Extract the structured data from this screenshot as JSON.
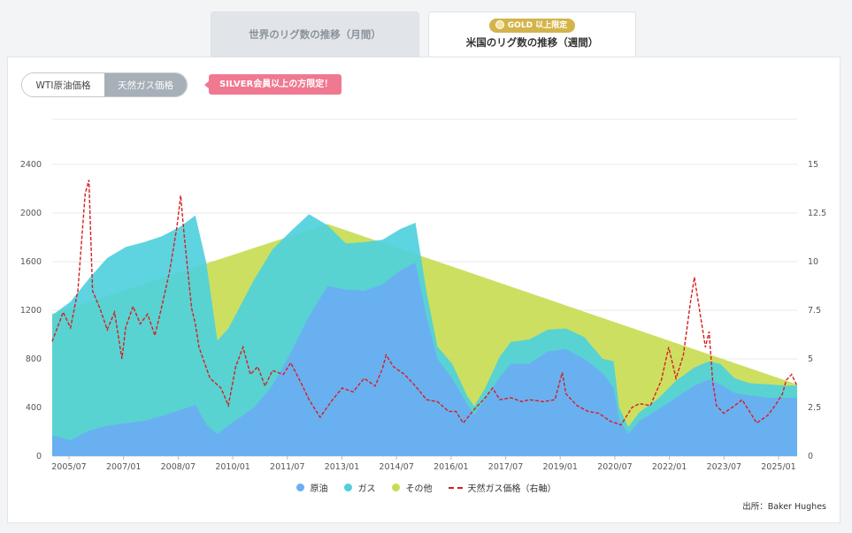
{
  "tabs": [
    {
      "label": "世界のリグ数の推移（月間）"
    },
    {
      "badge": "GOLD 以上限定",
      "label": "米国のリグ数の推移（週間）"
    }
  ],
  "toggle": {
    "wti": "WTI原油価格",
    "gas": "天然ガス価格"
  },
  "silver_notice": "SILVER会員以上の方限定！",
  "source": "出所：Baker Hughes",
  "colors": {
    "oil": "#6aaef2",
    "gas": "#4fd0dc",
    "other": "#c8dc50",
    "price": "#d81e1e",
    "selected_toggle": "#a7afb8",
    "silver": "#f07890",
    "gold": "#d4b44a"
  },
  "chart_data": {
    "type": "area",
    "x_ticks": [
      "2005/07",
      "2007/01",
      "2008/07",
      "2010/01",
      "2011/07",
      "2013/01",
      "2014/07",
      "2016/01",
      "2017/07",
      "2019/01",
      "2020/07",
      "2022/01",
      "2023/07",
      "2025/01"
    ],
    "left_axis": {
      "ticks": [
        0,
        400,
        800,
        1200,
        1600,
        2000,
        2400
      ],
      "range": [
        0,
        2400
      ]
    },
    "right_axis": {
      "ticks": [
        0,
        2.5,
        5,
        7.5,
        10,
        12.5,
        15
      ],
      "range": [
        0,
        15
      ]
    },
    "grid": true,
    "legend_position": "bottom",
    "series": [
      {
        "name": "原油",
        "kind": "stacked-area",
        "axis": "left",
        "points": [
          [
            2005.0,
            170
          ],
          [
            2005.5,
            130
          ],
          [
            2006.0,
            210
          ],
          [
            2006.5,
            250
          ],
          [
            2007.0,
            270
          ],
          [
            2007.5,
            290
          ],
          [
            2008.0,
            330
          ],
          [
            2008.5,
            380
          ],
          [
            2008.9,
            420
          ],
          [
            2009.2,
            260
          ],
          [
            2009.5,
            180
          ],
          [
            2009.8,
            250
          ],
          [
            2010.5,
            400
          ],
          [
            2011.0,
            580
          ],
          [
            2011.5,
            850
          ],
          [
            2012.0,
            1150
          ],
          [
            2012.5,
            1400
          ],
          [
            2013.0,
            1370
          ],
          [
            2013.5,
            1360
          ],
          [
            2014.0,
            1410
          ],
          [
            2014.5,
            1530
          ],
          [
            2014.9,
            1590
          ],
          [
            2015.2,
            1150
          ],
          [
            2015.5,
            800
          ],
          [
            2015.9,
            640
          ],
          [
            2016.3,
            430
          ],
          [
            2016.5,
            340
          ],
          [
            2016.8,
            470
          ],
          [
            2017.2,
            650
          ],
          [
            2017.5,
            760
          ],
          [
            2018.0,
            760
          ],
          [
            2018.5,
            860
          ],
          [
            2019.0,
            880
          ],
          [
            2019.5,
            800
          ],
          [
            2020.0,
            680
          ],
          [
            2020.3,
            560
          ],
          [
            2020.45,
            300
          ],
          [
            2020.7,
            180
          ],
          [
            2021.0,
            290
          ],
          [
            2021.5,
            380
          ],
          [
            2022.0,
            480
          ],
          [
            2022.5,
            580
          ],
          [
            2022.9,
            630
          ],
          [
            2023.2,
            590
          ],
          [
            2023.6,
            520
          ],
          [
            2024.0,
            500
          ],
          [
            2024.5,
            480
          ],
          [
            2025.0,
            480
          ],
          [
            2025.3,
            480
          ]
        ]
      },
      {
        "name": "ガス",
        "kind": "stacked-area",
        "axis": "left",
        "points": [
          [
            2005.0,
            1160
          ],
          [
            2005.5,
            1270
          ],
          [
            2006.0,
            1460
          ],
          [
            2006.5,
            1630
          ],
          [
            2007.0,
            1720
          ],
          [
            2007.5,
            1760
          ],
          [
            2008.0,
            1810
          ],
          [
            2008.5,
            1890
          ],
          [
            2008.9,
            1980
          ],
          [
            2009.2,
            1590
          ],
          [
            2009.5,
            950
          ],
          [
            2009.8,
            1050
          ],
          [
            2010.5,
            1450
          ],
          [
            2011.0,
            1700
          ],
          [
            2011.5,
            1850
          ],
          [
            2012.0,
            1990
          ],
          [
            2012.5,
            1900
          ],
          [
            2013.0,
            1750
          ],
          [
            2013.5,
            1760
          ],
          [
            2014.0,
            1780
          ],
          [
            2014.5,
            1870
          ],
          [
            2014.9,
            1920
          ],
          [
            2015.2,
            1350
          ],
          [
            2015.5,
            900
          ],
          [
            2015.9,
            760
          ],
          [
            2016.3,
            500
          ],
          [
            2016.5,
            410
          ],
          [
            2016.8,
            560
          ],
          [
            2017.2,
            820
          ],
          [
            2017.5,
            940
          ],
          [
            2018.0,
            960
          ],
          [
            2018.5,
            1040
          ],
          [
            2019.0,
            1050
          ],
          [
            2019.5,
            980
          ],
          [
            2020.0,
            800
          ],
          [
            2020.3,
            780
          ],
          [
            2020.45,
            400
          ],
          [
            2020.7,
            240
          ],
          [
            2021.0,
            360
          ],
          [
            2021.5,
            470
          ],
          [
            2022.0,
            620
          ],
          [
            2022.5,
            730
          ],
          [
            2022.9,
            780
          ],
          [
            2023.2,
            760
          ],
          [
            2023.6,
            640
          ],
          [
            2024.0,
            600
          ],
          [
            2024.5,
            590
          ],
          [
            2025.0,
            580
          ],
          [
            2025.3,
            580
          ]
        ]
      },
      {
        "name": "その他",
        "kind": "stacked-area",
        "axis": "left",
        "points": [
          [
            2005.0,
            1170
          ],
          [
            2012.5,
            1910
          ],
          [
            2025.3,
            590
          ]
        ]
      },
      {
        "name": "天然ガス価格（右軸）",
        "kind": "line",
        "axis": "right",
        "points": [
          [
            2005.0,
            5.9
          ],
          [
            2005.3,
            7.4
          ],
          [
            2005.5,
            6.6
          ],
          [
            2005.7,
            8.5
          ],
          [
            2005.9,
            13.5
          ],
          [
            2006.0,
            14.2
          ],
          [
            2006.1,
            8.5
          ],
          [
            2006.3,
            7.6
          ],
          [
            2006.5,
            6.5
          ],
          [
            2006.7,
            7.4
          ],
          [
            2006.9,
            5.0
          ],
          [
            2007.0,
            6.6
          ],
          [
            2007.2,
            7.7
          ],
          [
            2007.4,
            6.8
          ],
          [
            2007.6,
            7.3
          ],
          [
            2007.8,
            6.2
          ],
          [
            2008.0,
            7.8
          ],
          [
            2008.2,
            9.5
          ],
          [
            2008.4,
            11.8
          ],
          [
            2008.5,
            13.4
          ],
          [
            2008.6,
            11.3
          ],
          [
            2008.8,
            7.6
          ],
          [
            2008.9,
            6.8
          ],
          [
            2009.0,
            5.6
          ],
          [
            2009.3,
            4.0
          ],
          [
            2009.6,
            3.5
          ],
          [
            2009.8,
            2.6
          ],
          [
            2010.0,
            4.6
          ],
          [
            2010.2,
            5.6
          ],
          [
            2010.4,
            4.2
          ],
          [
            2010.6,
            4.6
          ],
          [
            2010.8,
            3.6
          ],
          [
            2011.0,
            4.4
          ],
          [
            2011.3,
            4.2
          ],
          [
            2011.5,
            4.8
          ],
          [
            2011.8,
            3.7
          ],
          [
            2012.0,
            2.9
          ],
          [
            2012.3,
            2.0
          ],
          [
            2012.6,
            2.8
          ],
          [
            2012.9,
            3.5
          ],
          [
            2013.2,
            3.3
          ],
          [
            2013.5,
            4.0
          ],
          [
            2013.8,
            3.6
          ],
          [
            2014.0,
            4.5
          ],
          [
            2014.1,
            5.2
          ],
          [
            2014.3,
            4.6
          ],
          [
            2014.6,
            4.2
          ],
          [
            2014.9,
            3.6
          ],
          [
            2015.2,
            2.9
          ],
          [
            2015.5,
            2.8
          ],
          [
            2015.8,
            2.3
          ],
          [
            2016.0,
            2.3
          ],
          [
            2016.2,
            1.7
          ],
          [
            2016.5,
            2.4
          ],
          [
            2016.8,
            3.0
          ],
          [
            2017.0,
            3.5
          ],
          [
            2017.2,
            2.9
          ],
          [
            2017.5,
            3.0
          ],
          [
            2017.8,
            2.8
          ],
          [
            2018.0,
            2.9
          ],
          [
            2018.4,
            2.8
          ],
          [
            2018.7,
            2.9
          ],
          [
            2018.9,
            4.3
          ],
          [
            2019.0,
            3.2
          ],
          [
            2019.3,
            2.6
          ],
          [
            2019.6,
            2.3
          ],
          [
            2019.9,
            2.2
          ],
          [
            2020.2,
            1.8
          ],
          [
            2020.5,
            1.6
          ],
          [
            2020.8,
            2.5
          ],
          [
            2021.0,
            2.7
          ],
          [
            2021.3,
            2.6
          ],
          [
            2021.6,
            3.9
          ],
          [
            2021.8,
            5.6
          ],
          [
            2022.0,
            4.0
          ],
          [
            2022.2,
            5.2
          ],
          [
            2022.4,
            8.0
          ],
          [
            2022.5,
            9.2
          ],
          [
            2022.6,
            8.0
          ],
          [
            2022.8,
            5.6
          ],
          [
            2022.9,
            6.4
          ],
          [
            2023.0,
            3.8
          ],
          [
            2023.1,
            2.6
          ],
          [
            2023.3,
            2.2
          ],
          [
            2023.6,
            2.6
          ],
          [
            2023.8,
            2.9
          ],
          [
            2024.0,
            2.3
          ],
          [
            2024.2,
            1.7
          ],
          [
            2024.5,
            2.1
          ],
          [
            2024.7,
            2.6
          ],
          [
            2024.9,
            3.2
          ],
          [
            2025.0,
            3.9
          ],
          [
            2025.15,
            4.2
          ],
          [
            2025.3,
            3.6
          ]
        ]
      }
    ]
  }
}
